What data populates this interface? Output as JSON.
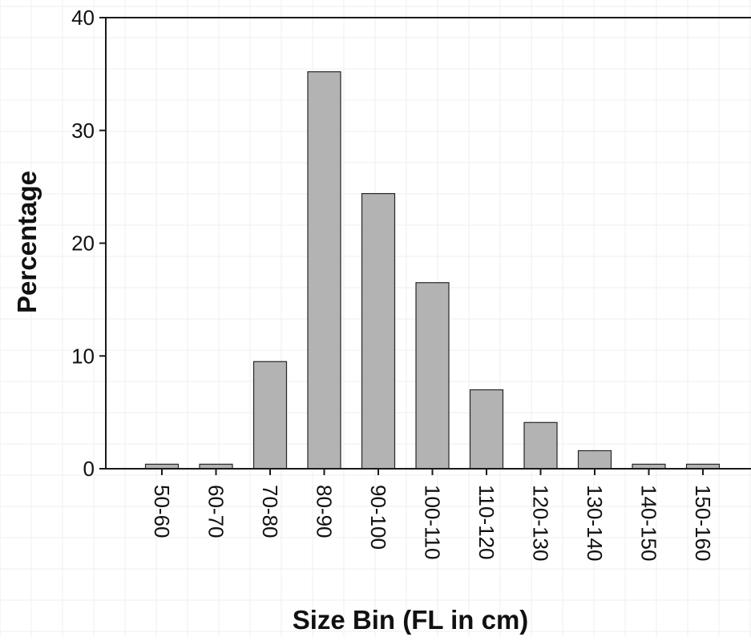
{
  "chart_data": {
    "type": "bar",
    "xlabel": "Size Bin (FL in cm)",
    "ylabel": "Percentage",
    "categories": [
      "50-60",
      "60-70",
      "70-80",
      "80-90",
      "90-100",
      "100-110",
      "110-120",
      "120-130",
      "130-140",
      "140-150",
      "150-160"
    ],
    "values": [
      0.4,
      0.4,
      9.5,
      35.2,
      24.4,
      16.5,
      7.0,
      4.1,
      1.6,
      0.4,
      0.4
    ],
    "ylim": [
      0,
      40
    ],
    "yticks": [
      "0",
      "10",
      "20",
      "30",
      "40"
    ],
    "grid": true,
    "legend": "none",
    "colors": {
      "bar_fill": "#b3b3b3",
      "bar_stroke": "#262626",
      "axis": "#1a1a1a",
      "grid": "#efefef"
    }
  }
}
